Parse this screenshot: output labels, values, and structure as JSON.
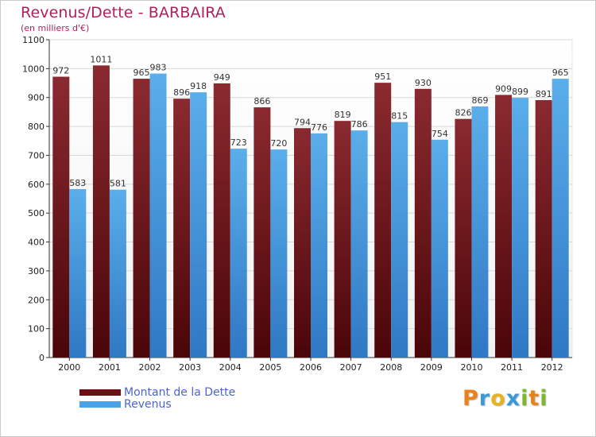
{
  "chart_data": {
    "type": "bar",
    "title": "Revenus/Dette - BARBAIRA",
    "subtitle": "(en milliers d'€)",
    "categories": [
      "2000",
      "2001",
      "2002",
      "2003",
      "2004",
      "2005",
      "2006",
      "2007",
      "2008",
      "2009",
      "2010",
      "2011",
      "2012"
    ],
    "series": [
      {
        "name": "Montant de la Dette",
        "values": [
          972,
          1011,
          965,
          896,
          949,
          866,
          794,
          819,
          951,
          930,
          826,
          909,
          891
        ],
        "color": "#7a2228"
      },
      {
        "name": "Revenus",
        "values": [
          583,
          581,
          983,
          918,
          723,
          720,
          776,
          786,
          815,
          754,
          869,
          899,
          965
        ],
        "color": "#4aa3e6"
      }
    ],
    "ylim": [
      0,
      1100
    ],
    "yticks": [
      0,
      100,
      200,
      300,
      400,
      500,
      600,
      700,
      800,
      900,
      1000,
      1100
    ],
    "grid": true,
    "legend_position": "bottom-left"
  },
  "legend": {
    "debt_color": "#6b0f14",
    "revenue_color": "#4aa3e6"
  },
  "logo": {
    "letters": [
      "P",
      "r",
      "o",
      "x",
      "i",
      "t",
      "i"
    ],
    "colors": [
      "#e8821e",
      "#3a9ad9",
      "#e8b41e",
      "#3a9ad9",
      "#7cb82f",
      "#e8821e",
      "#7cb82f"
    ]
  }
}
